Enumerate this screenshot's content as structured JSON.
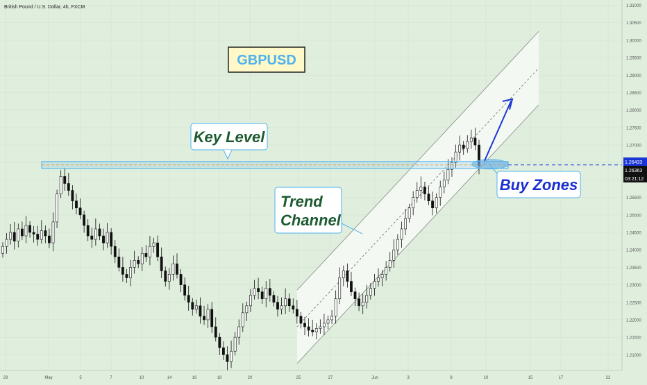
{
  "chart_data": {
    "type": "candlestick",
    "title": "British Pound / U.S. Dollar, 4h, FXCM",
    "symbol_label": "GBPUSD",
    "y_ticks": [
      1.21,
      1.215,
      1.22,
      1.225,
      1.23,
      1.235,
      1.24,
      1.245,
      1.25,
      1.255,
      1.26,
      1.265,
      1.27,
      1.275,
      1.28,
      1.285,
      1.29,
      1.295,
      1.3,
      1.305,
      1.31
    ],
    "y_tick_labels": [
      "1.21000",
      "1.21500",
      "1.22000",
      "1.22500",
      "1.23000",
      "1.23500",
      "1.24000",
      "1.24500",
      "1.25000",
      "1.25500",
      "1.26000",
      "1.26500",
      "1.27000",
      "1.27500",
      "1.28000",
      "1.28500",
      "1.29000",
      "1.29500",
      "1.30000",
      "1.30500",
      "1.31000"
    ],
    "ylim": [
      1.2055,
      1.3115
    ],
    "x_ticks": [
      "29",
      "May",
      "5",
      "7",
      "10",
      "14",
      "16",
      "18",
      "20",
      "25",
      "27",
      "Jun",
      "3",
      "8",
      "10",
      "15",
      "17",
      "22"
    ],
    "price_labels": {
      "key_level": "1.26433",
      "last_price": "1.26363",
      "countdown": "03:21:12"
    },
    "key_level": 1.2643,
    "annotations": {
      "key_level": "Key Level",
      "trend_channel_line1": "Trend",
      "trend_channel_line2": "Channel",
      "buy_zones": "Buy Zones"
    },
    "channel": {
      "lower_start": [
        1.2075
      ],
      "lower_end": [
        1.2815
      ],
      "upper_start": [
        1.2285
      ],
      "upper_end": [
        1.3025
      ],
      "mid_start": [
        1.218
      ],
      "mid_end": [
        1.292
      ]
    },
    "close_series": [
      1.241,
      1.243,
      1.245,
      1.2425,
      1.246,
      1.244,
      1.247,
      1.245,
      1.2445,
      1.243,
      1.2455,
      1.244,
      1.242,
      1.248,
      1.256,
      1.261,
      1.259,
      1.257,
      1.254,
      1.252,
      1.25,
      1.247,
      1.244,
      1.243,
      1.246,
      1.244,
      1.242,
      1.245,
      1.241,
      1.238,
      1.235,
      1.233,
      1.232,
      1.235,
      1.237,
      1.236,
      1.239,
      1.238,
      1.241,
      1.242,
      1.238,
      1.234,
      1.231,
      1.233,
      1.236,
      1.233,
      1.23,
      1.227,
      1.225,
      1.223,
      1.224,
      1.221,
      1.22,
      1.223,
      1.218,
      1.215,
      1.212,
      1.21,
      1.208,
      1.211,
      1.215,
      1.218,
      1.222,
      1.224,
      1.227,
      1.229,
      1.228,
      1.226,
      1.229,
      1.227,
      1.225,
      1.223,
      1.224,
      1.226,
      1.224,
      1.223,
      1.221,
      1.219,
      1.218,
      1.217,
      1.2165,
      1.2175,
      1.218,
      1.219,
      1.22,
      1.221,
      1.226,
      1.232,
      1.234,
      1.231,
      1.228,
      1.226,
      1.224,
      1.225,
      1.227,
      1.229,
      1.231,
      1.232,
      1.233,
      1.235,
      1.237,
      1.24,
      1.243,
      1.246,
      1.249,
      1.252,
      1.255,
      1.257,
      1.258,
      1.256,
      1.254,
      1.252,
      1.255,
      1.258,
      1.26,
      1.263,
      1.265,
      1.268,
      1.27,
      1.269,
      1.271,
      1.272,
      1.27,
      1.264
    ]
  }
}
